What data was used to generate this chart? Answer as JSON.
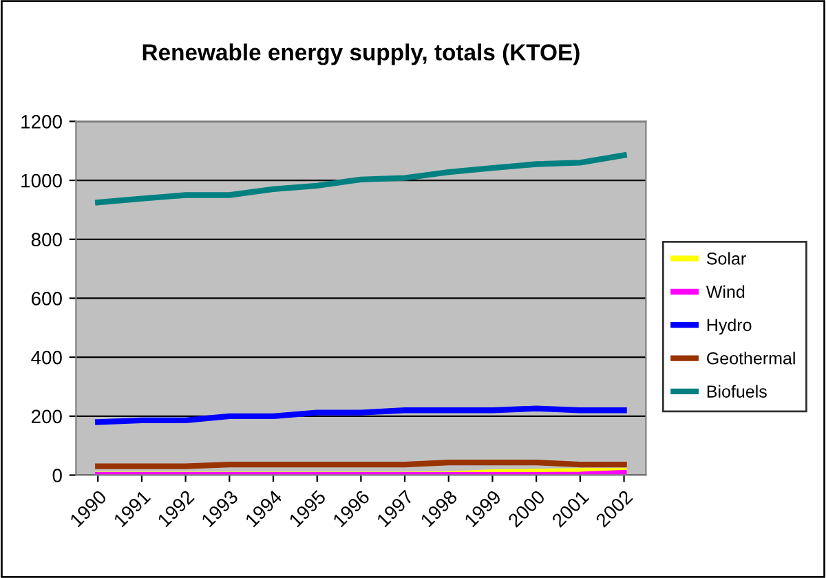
{
  "chart_data": {
    "type": "line",
    "title": "Renewable energy supply, totals (KTOE)",
    "categories": [
      "1990",
      "1991",
      "1992",
      "1993",
      "1994",
      "1995",
      "1996",
      "1997",
      "1998",
      "1999",
      "2000",
      "2001",
      "2002"
    ],
    "series": [
      {
        "name": "Solar",
        "color": "#ffff00",
        "values": [
          2,
          2,
          2,
          2,
          2,
          2,
          2,
          2,
          3,
          10,
          12,
          14,
          15
        ]
      },
      {
        "name": "Wind",
        "color": "#ff00ff",
        "values": [
          1,
          1,
          1,
          1,
          1,
          1,
          1,
          1,
          1,
          1,
          1,
          2,
          8
        ]
      },
      {
        "name": "Hydro",
        "color": "#0000ff",
        "values": [
          180,
          186,
          186,
          200,
          200,
          212,
          212,
          220,
          220,
          220,
          226,
          220,
          220
        ]
      },
      {
        "name": "Geothermal",
        "color": "#993300",
        "values": [
          30,
          30,
          30,
          36,
          36,
          36,
          36,
          36,
          43,
          43,
          43,
          36,
          36
        ]
      },
      {
        "name": "Biofuels",
        "color": "#008080",
        "values": [
          925,
          938,
          950,
          950,
          970,
          982,
          1003,
          1008,
          1028,
          1042,
          1055,
          1060,
          1085
        ]
      }
    ],
    "ylim": [
      0,
      1200
    ],
    "yticks": [
      0,
      200,
      400,
      600,
      800,
      1000,
      1200
    ],
    "grid": "y",
    "legend": "right",
    "marker": "none",
    "line_style": "solid"
  }
}
